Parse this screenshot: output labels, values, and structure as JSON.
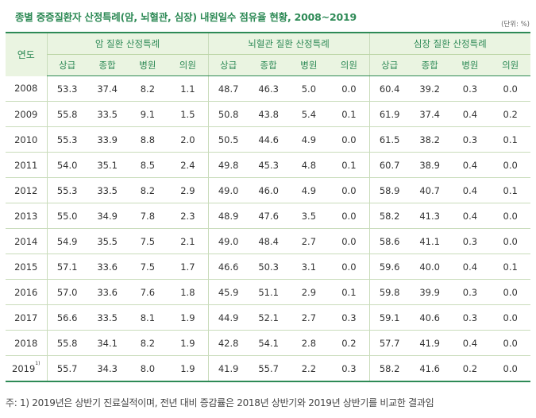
{
  "title": "종별 중증질환자 산정특례(암, 뇌혈관, 심장) 내원일수 점유율 현황, 2008~2019",
  "unit": "(단위: %)",
  "header": {
    "year_label": "연도",
    "groups": [
      "암 질환 산정특례",
      "뇌혈관 질환 산정특례",
      "심장 질환 산정특례"
    ],
    "sub_labels": [
      "상급",
      "종합",
      "병원",
      "의원"
    ]
  },
  "rows": [
    {
      "year": "2008",
      "sup": "",
      "values": [
        "53.3",
        "37.4",
        "8.2",
        "1.1",
        "48.7",
        "46.3",
        "5.0",
        "0.0",
        "60.4",
        "39.2",
        "0.3",
        "0.0"
      ]
    },
    {
      "year": "2009",
      "sup": "",
      "values": [
        "55.8",
        "33.5",
        "9.1",
        "1.5",
        "50.8",
        "43.8",
        "5.4",
        "0.1",
        "61.9",
        "37.4",
        "0.4",
        "0.2"
      ]
    },
    {
      "year": "2010",
      "sup": "",
      "values": [
        "55.3",
        "33.9",
        "8.8",
        "2.0",
        "50.5",
        "44.6",
        "4.9",
        "0.0",
        "61.5",
        "38.2",
        "0.3",
        "0.1"
      ]
    },
    {
      "year": "2011",
      "sup": "",
      "values": [
        "54.0",
        "35.1",
        "8.5",
        "2.4",
        "49.8",
        "45.3",
        "4.8",
        "0.1",
        "60.7",
        "38.9",
        "0.4",
        "0.0"
      ]
    },
    {
      "year": "2012",
      "sup": "",
      "values": [
        "55.3",
        "33.5",
        "8.2",
        "2.9",
        "49.0",
        "46.0",
        "4.9",
        "0.0",
        "58.9",
        "40.7",
        "0.4",
        "0.1"
      ]
    },
    {
      "year": "2013",
      "sup": "",
      "values": [
        "55.0",
        "34.9",
        "7.8",
        "2.3",
        "48.9",
        "47.6",
        "3.5",
        "0.0",
        "58.2",
        "41.3",
        "0.4",
        "0.0"
      ]
    },
    {
      "year": "2014",
      "sup": "",
      "values": [
        "54.9",
        "35.5",
        "7.5",
        "2.1",
        "49.0",
        "48.4",
        "2.7",
        "0.0",
        "58.6",
        "41.1",
        "0.3",
        "0.0"
      ]
    },
    {
      "year": "2015",
      "sup": "",
      "values": [
        "57.1",
        "33.6",
        "7.5",
        "1.7",
        "46.6",
        "50.3",
        "3.1",
        "0.0",
        "59.6",
        "40.0",
        "0.4",
        "0.1"
      ]
    },
    {
      "year": "2016",
      "sup": "",
      "values": [
        "57.0",
        "33.6",
        "7.6",
        "1.8",
        "45.9",
        "51.1",
        "2.9",
        "0.1",
        "59.8",
        "39.9",
        "0.3",
        "0.0"
      ]
    },
    {
      "year": "2017",
      "sup": "",
      "values": [
        "56.6",
        "33.5",
        "8.1",
        "1.9",
        "44.9",
        "52.1",
        "2.7",
        "0.3",
        "59.1",
        "40.6",
        "0.3",
        "0.0"
      ]
    },
    {
      "year": "2018",
      "sup": "",
      "values": [
        "55.8",
        "34.1",
        "8.2",
        "1.9",
        "42.8",
        "54.1",
        "2.8",
        "0.2",
        "57.7",
        "41.9",
        "0.4",
        "0.0"
      ]
    },
    {
      "year": "2019",
      "sup": "1)",
      "values": [
        "55.7",
        "34.3",
        "8.0",
        "1.9",
        "41.9",
        "55.7",
        "2.2",
        "0.3",
        "58.2",
        "41.6",
        "0.2",
        "0.0"
      ]
    }
  ],
  "note": "주: 1) 2019년은 상반기 진료실적이며, 전년 대비 증감률은 2018년 상반기와 2019년 상반기를 비교한 결과임"
}
